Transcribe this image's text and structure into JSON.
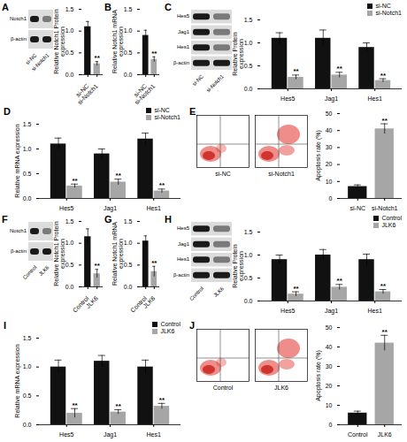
{
  "chart_data": [
    {
      "type": "bar",
      "y_label": "Relative Notch1 Protein expression",
      "categories": [
        "si-NC",
        "si-Notch1"
      ],
      "values": [
        1.1,
        0.25
      ],
      "errors": [
        0.12,
        0.05
      ],
      "colors": [
        "#111111",
        "#a6a6a6"
      ],
      "ylim": [
        0,
        1.5
      ],
      "yticks": [
        {
          "value": 0,
          "label": "0.0"
        },
        0.5,
        {
          "value": 1,
          "label": "1.0"
        },
        1.5
      ],
      "annotations": [
        {
          "x": "si-Notch1",
          "text": "**"
        }
      ]
    },
    {
      "type": "bar",
      "panel": "B",
      "y_label": "Relative Notch1 mRNA expression",
      "categories": [
        "si-NC",
        "si-Notch1"
      ],
      "values": [
        0.9,
        0.35
      ],
      "errors": [
        0.12,
        0.06
      ],
      "colors": [
        "#111111",
        "#a6a6a6"
      ],
      "ylim": [
        0,
        1.5
      ],
      "yticks": [
        {
          "value": 0,
          "label": "0.0"
        },
        0.5,
        {
          "value": 1,
          "label": "1.0"
        },
        1.5
      ],
      "annotations": [
        {
          "x": "si-Notch1",
          "text": "**"
        }
      ]
    },
    {
      "type": "bar",
      "y_label": "Relative Protein expression",
      "categories": [
        "Hes5",
        "Jag1",
        "Hes1"
      ],
      "series": [
        {
          "name": "si-NC",
          "color": "#111111",
          "values": [
            1.1,
            1.1,
            0.9
          ],
          "errors": [
            0.12,
            0.18,
            0.1
          ]
        },
        {
          "name": "si-Notch1",
          "color": "#a6a6a6",
          "values": [
            0.25,
            0.3,
            0.18
          ],
          "errors": [
            0.05,
            0.06,
            0.04
          ]
        }
      ],
      "ylim": [
        0,
        1.5
      ],
      "yticks": [
        {
          "value": 0,
          "label": "0.0"
        },
        0.5,
        {
          "value": 1,
          "label": "1.0"
        },
        1.5
      ],
      "legend": "top-right",
      "annotations": [
        {
          "x": "Hes5",
          "series": "si-Notch1",
          "text": "**"
        },
        {
          "x": "Jag1",
          "series": "si-Notch1",
          "text": "**"
        },
        {
          "x": "Hes1",
          "series": "si-Notch1",
          "text": "**"
        }
      ]
    },
    {
      "type": "bar",
      "panel": "D",
      "y_label": "Relative mRNA expression",
      "categories": [
        "Hes5",
        "Jag1",
        "Hes1"
      ],
      "series": [
        {
          "name": "si-NC",
          "color": "#111111",
          "values": [
            1.1,
            0.9,
            1.2
          ],
          "errors": [
            0.12,
            0.1,
            0.12
          ]
        },
        {
          "name": "si-Notch1",
          "color": "#a6a6a6",
          "values": [
            0.25,
            0.33,
            0.15
          ],
          "errors": [
            0.04,
            0.06,
            0.04
          ]
        }
      ],
      "ylim": [
        0,
        1.5
      ],
      "yticks": [
        {
          "value": 0,
          "label": "0.0"
        },
        0.5,
        {
          "value": 1,
          "label": "1.0"
        },
        1.5
      ],
      "legend": "top-right",
      "annotations": [
        {
          "x": "Hes5",
          "series": "si-Notch1",
          "text": "**"
        },
        {
          "x": "Jag1",
          "series": "si-Notch1",
          "text": "**"
        },
        {
          "x": "Hes1",
          "series": "si-Notch1",
          "text": "**"
        }
      ]
    },
    {
      "type": "bar",
      "y_label": "Apoptosis rate (%)",
      "categories": [
        "si-NC",
        "si-Notch1"
      ],
      "values": [
        7,
        41
      ],
      "errors": [
        1,
        3
      ],
      "colors": [
        "#111111",
        "#a6a6a6"
      ],
      "ylim": [
        0,
        50
      ],
      "yticks": [
        0,
        10,
        20,
        30,
        40,
        50
      ],
      "annotations": [
        {
          "x": "si-Notch1",
          "text": "**"
        }
      ]
    },
    {
      "type": "bar",
      "y_label": "Relative Notch1 Protein expression",
      "categories": [
        "Control",
        "JLK6"
      ],
      "values": [
        1.15,
        0.3
      ],
      "errors": [
        0.18,
        0.1
      ],
      "colors": [
        "#111111",
        "#a6a6a6"
      ],
      "ylim": [
        0,
        1.5
      ],
      "yticks": [
        {
          "value": 0,
          "label": "0.0"
        },
        0.5,
        {
          "value": 1,
          "label": "1.0"
        },
        1.5
      ],
      "annotations": [
        {
          "x": "JLK6",
          "text": "**"
        }
      ]
    },
    {
      "type": "bar",
      "panel": "G",
      "y_label": "Relative Notch1 mRNA expression",
      "categories": [
        "Control",
        "JLK6"
      ],
      "values": [
        1.05,
        0.35
      ],
      "errors": [
        0.12,
        0.12
      ],
      "colors": [
        "#111111",
        "#a6a6a6"
      ],
      "ylim": [
        0,
        1.5
      ],
      "yticks": [
        {
          "value": 0,
          "label": "0.0"
        },
        0.5,
        {
          "value": 1,
          "label": "1.0"
        },
        1.5
      ],
      "annotations": [
        {
          "x": "JLK6",
          "text": "**"
        }
      ]
    },
    {
      "type": "bar",
      "y_label": "Relative Protein expression",
      "categories": [
        "Hes5",
        "Jag1",
        "Hes1"
      ],
      "series": [
        {
          "name": "Control",
          "color": "#111111",
          "values": [
            0.9,
            1.0,
            0.9
          ],
          "errors": [
            0.1,
            0.12,
            0.12
          ]
        },
        {
          "name": "JLK6",
          "color": "#a6a6a6",
          "values": [
            0.15,
            0.3,
            0.2
          ],
          "errors": [
            0.05,
            0.06,
            0.05
          ]
        }
      ],
      "ylim": [
        0,
        1.5
      ],
      "yticks": [
        {
          "value": 0,
          "label": "0.0"
        },
        0.5,
        {
          "value": 1,
          "label": "1.0"
        },
        1.5
      ],
      "legend": "top-right",
      "annotations": [
        {
          "x": "Hes5",
          "series": "JLK6",
          "text": "**"
        },
        {
          "x": "Jag1",
          "series": "JLK6",
          "text": "**"
        },
        {
          "x": "Hes1",
          "series": "JLK6",
          "text": "**"
        }
      ]
    },
    {
      "type": "bar",
      "panel": "I",
      "y_label": "Relative mRNA expression",
      "categories": [
        "Hes5",
        "Jag1",
        "Hes1"
      ],
      "series": [
        {
          "name": "Control",
          "color": "#111111",
          "values": [
            1.0,
            1.1,
            1.0
          ],
          "errors": [
            0.12,
            0.1,
            0.12
          ]
        },
        {
          "name": "JLK6",
          "color": "#a6a6a6",
          "values": [
            0.2,
            0.22,
            0.32
          ],
          "errors": [
            0.08,
            0.04,
            0.05
          ]
        }
      ],
      "ylim": [
        0,
        1.5
      ],
      "yticks": [
        {
          "value": 0,
          "label": "0.0"
        },
        0.5,
        {
          "value": 1,
          "label": "1.0"
        },
        1.5
      ],
      "legend": "top-right",
      "annotations": [
        {
          "x": "Hes5",
          "series": "JLK6",
          "text": "**"
        },
        {
          "x": "Jag1",
          "series": "JLK6",
          "text": "**"
        },
        {
          "x": "Hes1",
          "series": "JLK6",
          "text": "**"
        }
      ]
    },
    {
      "type": "bar",
      "y_label": "Apoptosis rate (%)",
      "categories": [
        "Control",
        "JLK6"
      ],
      "values": [
        6,
        42
      ],
      "errors": [
        1,
        4
      ],
      "colors": [
        "#111111",
        "#a6a6a6"
      ],
      "ylim": [
        0,
        50
      ],
      "yticks": [
        0,
        10,
        20,
        30,
        40,
        50
      ],
      "annotations": [
        {
          "x": "JLK6",
          "text": "**"
        }
      ]
    }
  ],
  "blots": [
    {
      "panel": "A",
      "proteins": [
        "Notch1",
        "β-actin"
      ],
      "lanes": [
        "si-NC",
        "si-Notch1"
      ]
    },
    {
      "panel": "C",
      "proteins": [
        "Hes5",
        "Jag1",
        "Hes1",
        "β-actin"
      ],
      "lanes": [
        "si-NC",
        "si-Notch1"
      ]
    },
    {
      "panel": "F",
      "proteins": [
        "Notch1",
        "β-actin"
      ],
      "lanes": [
        "Control",
        "JLK6"
      ]
    },
    {
      "panel": "H",
      "proteins": [
        "Hes5",
        "Jag1",
        "Hes1",
        "β-actin"
      ],
      "lanes": [
        "Control",
        "JLK6"
      ]
    }
  ],
  "flow_plots": [
    {
      "panel": "E",
      "samples": [
        "si-NC",
        "si-Notch1"
      ]
    },
    {
      "panel": "J",
      "samples": [
        "Control",
        "JLK6"
      ]
    }
  ]
}
